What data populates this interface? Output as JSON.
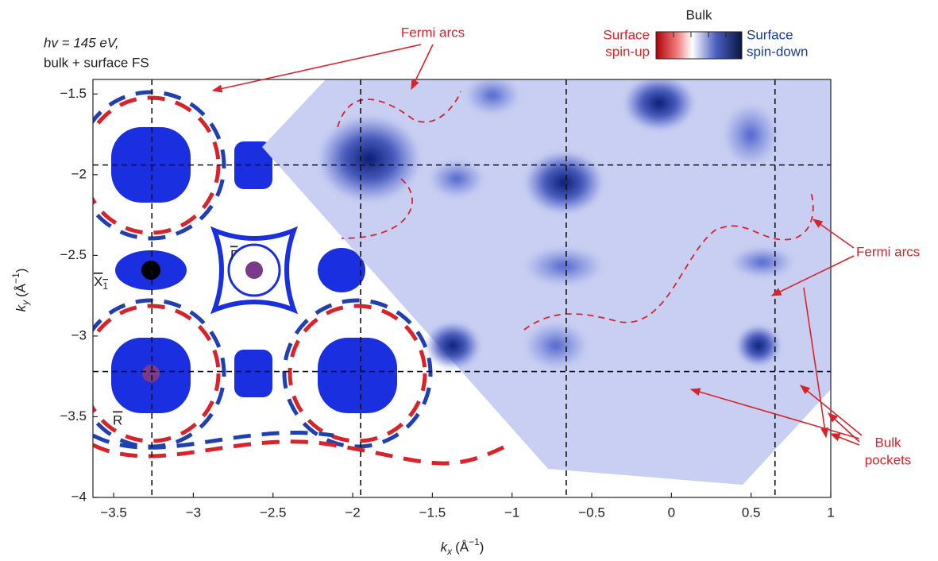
{
  "chart_data": {
    "type": "heatmap",
    "annotation_energy": "hv = 145 eV,",
    "annotation_fs": "bulk + surface FS",
    "x_label": {
      "symbol": "k",
      "sub": "x",
      "unit": "(Å",
      "exp": "−1",
      "close": ")"
    },
    "y_label": {
      "symbol": "k",
      "sub": "y",
      "unit": "(Å",
      "exp": "−1",
      "close": ")"
    },
    "xlim": [
      -3.63,
      1
    ],
    "ylim": [
      -4,
      -1.41
    ],
    "xticks": [
      {
        "value": -3.5,
        "label": "−3.5"
      },
      {
        "value": -3,
        "label": "−3"
      },
      {
        "value": -2.5,
        "label": "−2.5"
      },
      {
        "value": -2,
        "label": "−2"
      },
      {
        "value": -1.5,
        "label": "−1.5"
      },
      {
        "value": -1,
        "label": "−1"
      },
      {
        "value": -0.5,
        "label": "−0.5"
      },
      0,
      0.5,
      1
    ],
    "yticks": [
      {
        "value": -1.5,
        "label": "−1.5"
      },
      {
        "value": -2,
        "label": "−2"
      },
      {
        "value": -2.5,
        "label": "−2.5"
      },
      {
        "value": -3,
        "label": "−3"
      },
      {
        "value": -3.5,
        "label": "−3.5"
      },
      {
        "value": -4,
        "label": "−4"
      }
    ],
    "reference_lines": {
      "x": [
        -3.26,
        -1.95,
        -0.66,
        0.65
      ],
      "y": [
        -1.94,
        -3.22
      ]
    },
    "point_labels": {
      "x1": "X",
      "x1_sub": "1",
      "gamma": "Γ",
      "r": "R"
    },
    "colorbar": {
      "title": "Bulk",
      "left_line1": "Surface",
      "left_line2": "spin-up",
      "right_line1": "Surface",
      "right_line2": "spin-down"
    },
    "labels": {
      "fermi_arcs_top": "Fermi arcs",
      "fermi_arcs_right": "Fermi arcs",
      "bulk_pockets_1": "Bulk",
      "bulk_pockets_2": "pockets"
    }
  }
}
